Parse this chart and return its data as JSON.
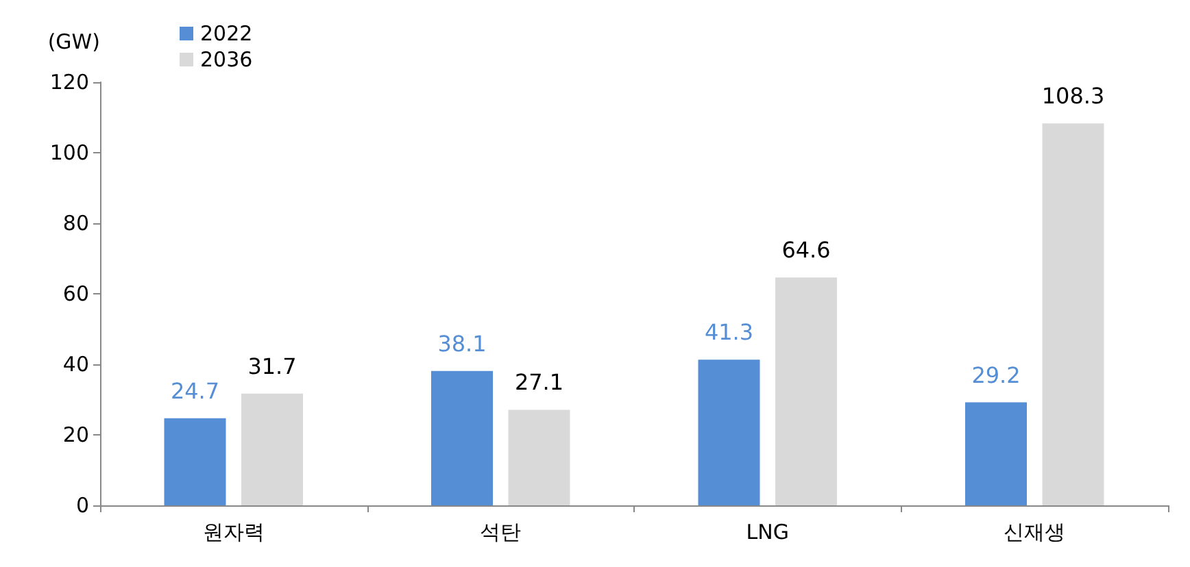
{
  "chart_data": {
    "type": "bar",
    "ylabel": "(GW)",
    "categories": [
      "원자력",
      "석탄",
      "LNG",
      "신재생"
    ],
    "series": [
      {
        "name": "2022",
        "color": "#558ed5",
        "values": [
          24.7,
          38.1,
          41.3,
          29.2
        ]
      },
      {
        "name": "2036",
        "color": "#d9d9d9",
        "values": [
          31.7,
          27.1,
          64.6,
          108.3
        ]
      }
    ],
    "ylim": [
      0,
      120
    ],
    "yticks": [
      0,
      20,
      40,
      60,
      80,
      100,
      120
    ],
    "data_labels": true,
    "grid": false,
    "legend": "top left"
  }
}
